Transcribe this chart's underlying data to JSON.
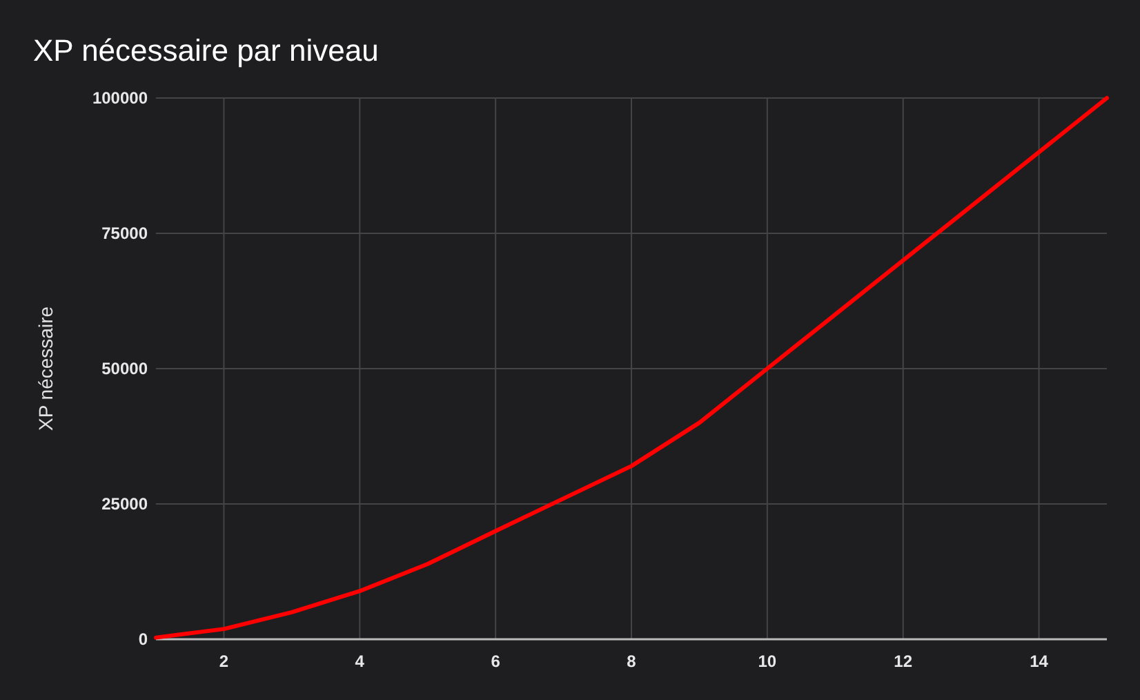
{
  "chart_data": {
    "type": "line",
    "title": "XP nécessaire par niveau",
    "ylabel": "XP nécessaire",
    "x": [
      1,
      2,
      3,
      4,
      5,
      6,
      7,
      8,
      9,
      10,
      11,
      12,
      13,
      14,
      15
    ],
    "series": [
      {
        "color": "#ff0000",
        "values": [
          300,
          1900,
          5000,
          8900,
          13900,
          20000,
          26000,
          32000,
          40000,
          50000,
          60000,
          70000,
          80000,
          90000,
          100000
        ]
      }
    ],
    "xlim": [
      1,
      15
    ],
    "xticks": [
      2,
      4,
      6,
      8,
      10,
      12,
      14
    ],
    "ylim": [
      0,
      100000
    ],
    "yticks": [
      0,
      25000,
      50000,
      75000,
      100000
    ],
    "grid": true,
    "marker": "none",
    "line_style": "solid"
  }
}
